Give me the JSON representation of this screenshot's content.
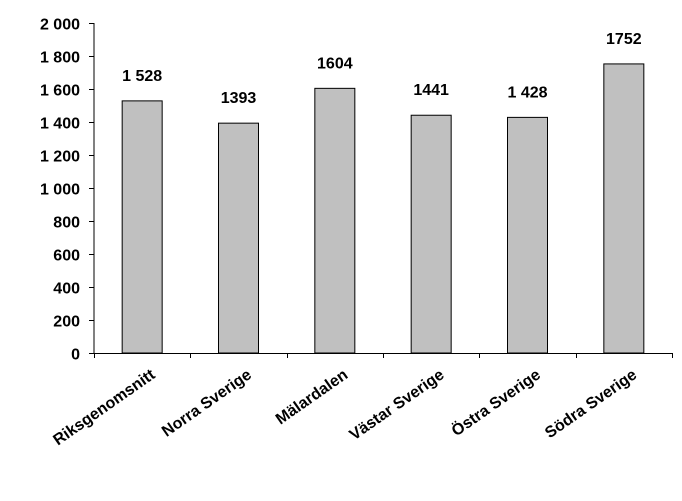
{
  "chart_data": {
    "type": "bar",
    "title": "",
    "xlabel": "",
    "ylabel": "",
    "categories": [
      "Riksgenomsnitt",
      "Norra Sverige",
      "Mälardalen",
      "Västar Sverige",
      "Östra Sverige",
      "Södra Sverige"
    ],
    "values": [
      1528,
      1393,
      1604,
      1441,
      1428,
      1752
    ],
    "data_labels": [
      "1 528",
      "1393",
      "1604",
      "1441",
      "1 428",
      "1752"
    ],
    "y_ticks": [
      0,
      200,
      400,
      600,
      800,
      1000,
      1200,
      1400,
      1600,
      1800,
      2000
    ],
    "y_tick_labels": [
      "0",
      "200",
      "400",
      "600",
      "800",
      "1 000",
      "1 200",
      "1 400",
      "1 600",
      "1 800",
      "2 000"
    ],
    "ylim": [
      0,
      2000
    ],
    "grid": false,
    "legend": "none",
    "colors": {
      "bar_fill": "#c0c0c0",
      "bar_stroke": "#000000",
      "axis": "#000000"
    }
  }
}
